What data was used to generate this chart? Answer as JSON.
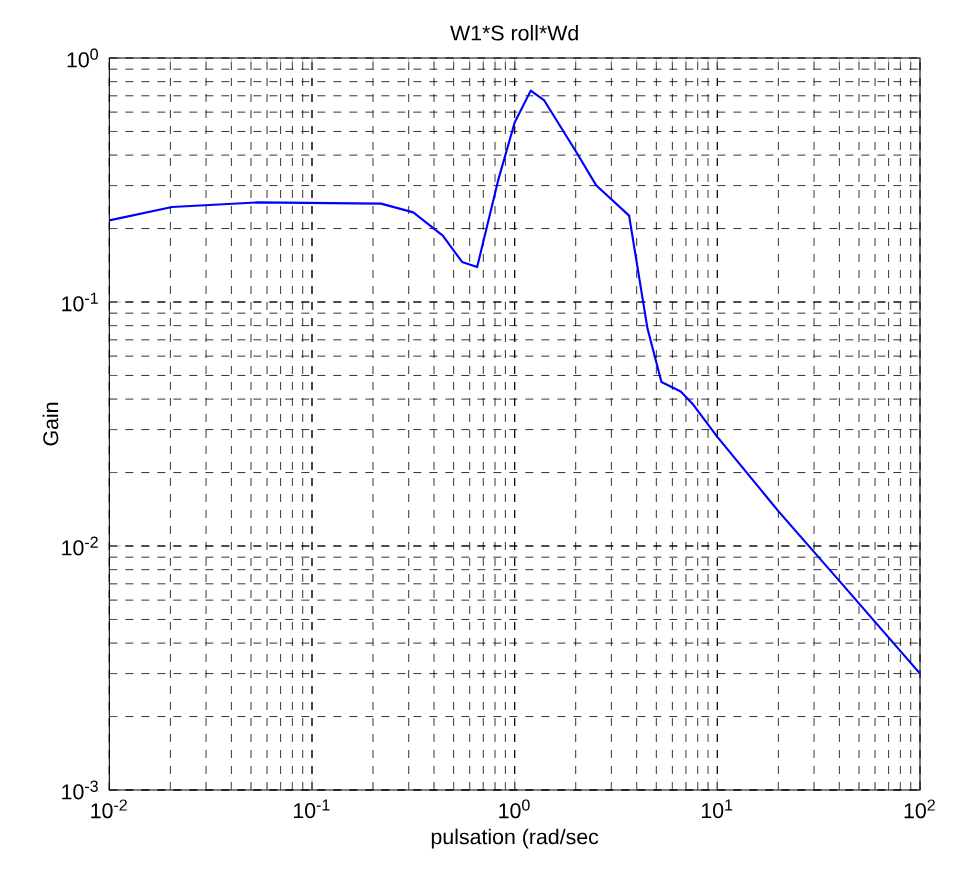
{
  "chart_data": {
    "type": "line",
    "title": "W1*S roll*Wd",
    "xlabel": "pulsation (rad/sec",
    "ylabel": "Gain",
    "log": "xy",
    "grid": true,
    "marker": "none",
    "line_style": "solid",
    "x": [
      0.01,
      0.0204,
      0.0537,
      0.219,
      0.316,
      0.442,
      0.55,
      0.653,
      0.832,
      1.0,
      1.2,
      1.4,
      2.02,
      2.53,
      3.67,
      4.52,
      5.3,
      6.6,
      7.6,
      10,
      20,
      40,
      100
    ],
    "series": [
      {
        "color": "#0000ff",
        "values": [
          0.216,
          0.245,
          0.256,
          0.253,
          0.233,
          0.187,
          0.146,
          0.139,
          0.319,
          0.544,
          0.735,
          0.67,
          0.41,
          0.3,
          0.226,
          0.078,
          0.047,
          0.043,
          0.038,
          0.028,
          0.0139,
          0.0072,
          0.003
        ]
      }
    ],
    "xlim": [
      0.01,
      100
    ],
    "ylim": [
      0.001,
      1
    ],
    "xticks": [
      {
        "value": 0.01,
        "label": "10$^{-2}$"
      },
      {
        "value": 0.1,
        "label": "10$^{-1}$"
      },
      {
        "value": 1,
        "label": "10$^{0}$"
      },
      {
        "value": 10,
        "label": "10$^{1}$"
      },
      {
        "value": 100,
        "label": "10$^{2}$"
      }
    ],
    "yticks": [
      {
        "value": 0.001,
        "label": "10$^{-3}$"
      },
      {
        "value": 0.01,
        "label": "10$^{-2}$"
      },
      {
        "value": 0.1,
        "label": "10$^{-1}$"
      },
      {
        "value": 1,
        "label": "10$^{0}$"
      }
    ]
  }
}
